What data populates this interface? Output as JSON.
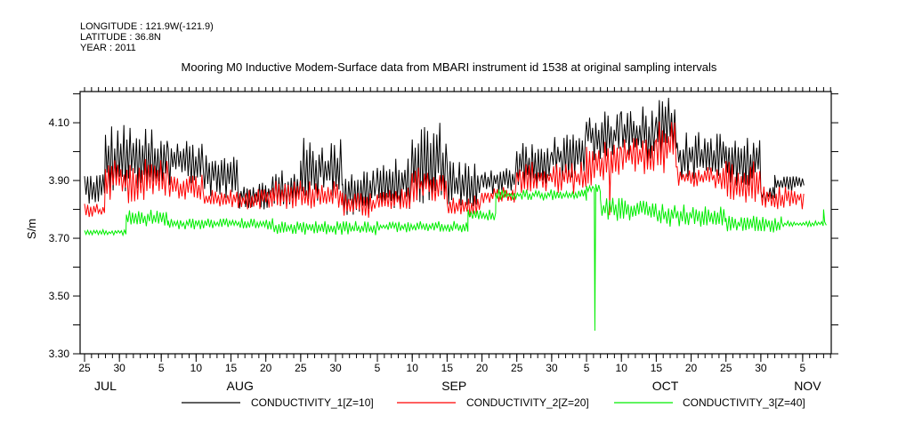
{
  "header": {
    "longitude": "LONGITUDE : 121.9W(-121.9)",
    "latitude": "LATITUDE : 36.8N",
    "year": "YEAR : 2011"
  },
  "chart_data": {
    "type": "line",
    "title": "Mooring M0 Inductive Modem-Surface data from MBARI instrument id 1538 at original sampling intervals",
    "xlabel": "",
    "ylabel": "S/m",
    "x_units": "days since 2011-07-01",
    "xlim": [
      23.36,
      131.1
    ],
    "ylim": [
      3.3,
      4.208
    ],
    "grid": false,
    "legend_placement": "bottom",
    "y_ticks": [
      {
        "value": 3.3,
        "label": "3.30"
      },
      {
        "value": 3.5,
        "label": "3.50"
      },
      {
        "value": 3.7,
        "label": "3.70"
      },
      {
        "value": 3.9,
        "label": "3.90"
      },
      {
        "value": 4.1,
        "label": "4.10"
      }
    ],
    "x_ticks": [
      {
        "day": 24,
        "label": "25"
      },
      {
        "day": 29,
        "label": "30"
      },
      {
        "day": 35,
        "label": "5"
      },
      {
        "day": 40,
        "label": "10"
      },
      {
        "day": 45,
        "label": "15"
      },
      {
        "day": 50,
        "label": "20"
      },
      {
        "day": 55,
        "label": "25"
      },
      {
        "day": 60,
        "label": "30"
      },
      {
        "day": 66,
        "label": "5"
      },
      {
        "day": 71,
        "label": "10"
      },
      {
        "day": 76,
        "label": "15"
      },
      {
        "day": 81,
        "label": "20"
      },
      {
        "day": 86,
        "label": "25"
      },
      {
        "day": 91,
        "label": "30"
      },
      {
        "day": 96,
        "label": "5"
      },
      {
        "day": 101,
        "label": "10"
      },
      {
        "day": 106,
        "label": "15"
      },
      {
        "day": 111,
        "label": "20"
      },
      {
        "day": 116,
        "label": "25"
      },
      {
        "day": 121,
        "label": "30"
      },
      {
        "day": 127,
        "label": "5"
      }
    ],
    "month_labels": [
      {
        "day": 27,
        "label": "JUL"
      },
      {
        "day": 46.3,
        "label": "AUG"
      },
      {
        "day": 77,
        "label": "SEP"
      },
      {
        "day": 107.3,
        "label": "OCT"
      },
      {
        "day": 127.7,
        "label": "NOV"
      }
    ],
    "series": [
      {
        "name": "CONDUCTIVITY_1[Z=10]",
        "color": "#000000",
        "ranges": [
          [
            24,
            27,
            3.82,
            3.93
          ],
          [
            27,
            31,
            3.85,
            4.1
          ],
          [
            31,
            36,
            3.87,
            4.09
          ],
          [
            36,
            41,
            3.88,
            4.05
          ],
          [
            41,
            46,
            3.84,
            3.99
          ],
          [
            46,
            51,
            3.8,
            3.9
          ],
          [
            51,
            55,
            3.8,
            3.94
          ],
          [
            55,
            61,
            3.82,
            4.05
          ],
          [
            61,
            66,
            3.78,
            3.95
          ],
          [
            66,
            71,
            3.8,
            3.98
          ],
          [
            71,
            76,
            3.82,
            4.11
          ],
          [
            76,
            81,
            3.8,
            3.97
          ],
          [
            81,
            86,
            3.85,
            3.95
          ],
          [
            86,
            91,
            3.87,
            4.03
          ],
          [
            91,
            96,
            3.9,
            4.06
          ],
          [
            96,
            101,
            3.97,
            4.14
          ],
          [
            101,
            106,
            3.95,
            4.17
          ],
          [
            106,
            109,
            3.95,
            4.21
          ],
          [
            109,
            116,
            3.9,
            4.07
          ],
          [
            116,
            121,
            3.88,
            4.05
          ],
          [
            121,
            123,
            3.82,
            3.88
          ],
          [
            123,
            127.3,
            3.86,
            3.92
          ]
        ]
      },
      {
        "name": "CONDUCTIVITY_2[Z=20]",
        "color": "#ff0000",
        "ranges": [
          [
            24,
            27,
            3.77,
            3.82
          ],
          [
            27,
            36,
            3.82,
            3.98
          ],
          [
            36,
            41,
            3.83,
            3.92
          ],
          [
            41,
            51,
            3.8,
            3.87
          ],
          [
            51,
            61,
            3.8,
            3.9
          ],
          [
            61,
            66,
            3.77,
            3.86
          ],
          [
            66,
            71,
            3.8,
            3.88
          ],
          [
            71,
            76,
            3.82,
            3.95
          ],
          [
            76,
            81,
            3.77,
            3.85
          ],
          [
            81,
            86,
            3.82,
            3.88
          ],
          [
            86,
            96,
            3.85,
            3.97
          ],
          [
            96,
            101,
            3.88,
            4.04
          ],
          [
            101,
            106,
            3.92,
            4.05
          ],
          [
            106,
            109,
            3.92,
            4.12
          ],
          [
            109,
            116,
            3.87,
            3.95
          ],
          [
            116,
            121,
            3.82,
            3.97
          ],
          [
            121,
            127.3,
            3.8,
            3.88
          ]
        ],
        "spikes": [
          [
            99.3,
            3.78
          ]
        ]
      },
      {
        "name": "CONDUCTIVITY_3[Z=40]",
        "color": "#00ee00",
        "ranges": [
          [
            24,
            30,
            3.71,
            3.73
          ],
          [
            30,
            36,
            3.74,
            3.8
          ],
          [
            36,
            51,
            3.73,
            3.77
          ],
          [
            51,
            66,
            3.71,
            3.76
          ],
          [
            66,
            79,
            3.72,
            3.76
          ],
          [
            79,
            83,
            3.76,
            3.8
          ],
          [
            83,
            96,
            3.83,
            3.87
          ],
          [
            96,
            98,
            3.86,
            3.89
          ],
          [
            98,
            106,
            3.76,
            3.84
          ],
          [
            106,
            116,
            3.74,
            3.82
          ],
          [
            116,
            124,
            3.72,
            3.78
          ],
          [
            124,
            130.5,
            3.74,
            3.76
          ]
        ],
        "spikes": [
          [
            97.2,
            3.38
          ],
          [
            130,
            3.8
          ]
        ]
      }
    ]
  }
}
